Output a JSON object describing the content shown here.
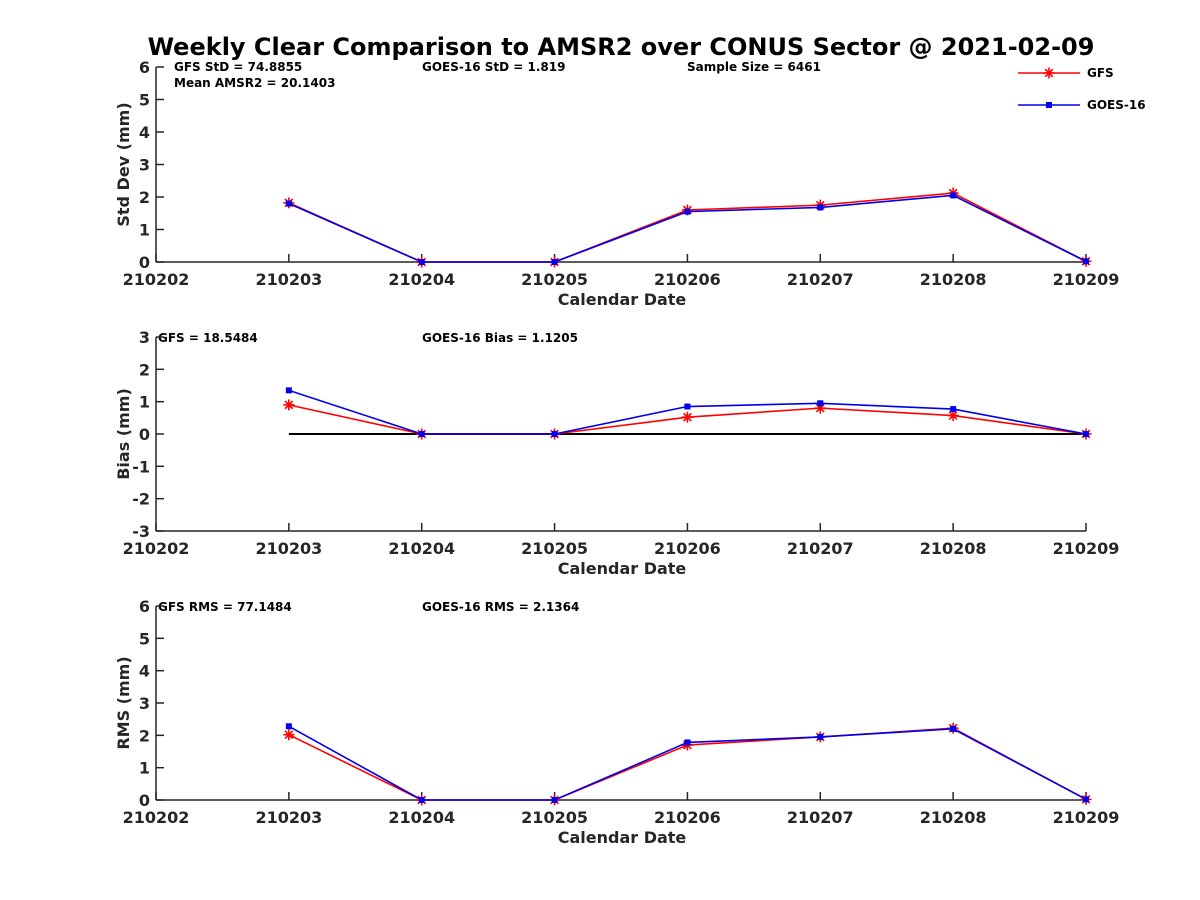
{
  "title": "Weekly Clear Comparison to AMSR2 over CONUS Sector @ 2021-02-09",
  "legend": [
    {
      "name": "GFS",
      "color": "#ff0000",
      "marker": "star"
    },
    {
      "name": "GOES-16",
      "color": "#0000ee",
      "marker": "square"
    }
  ],
  "panels": [
    {
      "stats": [
        {
          "text": "GFS StD = 74.8855"
        },
        {
          "text": "GOES-16 StD = 1.819"
        },
        {
          "text": "Sample Size = 6461"
        },
        {
          "text": "Mean AMSR2 = 20.1403"
        }
      ]
    },
    {
      "stats": [
        {
          "text": "GFS = 18.5484"
        },
        {
          "text": "GOES-16 Bias  = 1.1205"
        }
      ]
    },
    {
      "stats": [
        {
          "text": "GFS RMS = 77.1484"
        },
        {
          "text": "GOES-16 RMS = 2.1364"
        }
      ]
    }
  ],
  "chart_data": [
    {
      "type": "line",
      "title": "Weekly Clear Comparison to AMSR2 over CONUS Sector @ 2021-02-09",
      "xlabel": "Calendar Date",
      "ylabel": "Std Dev (mm)",
      "categories": [
        "210202",
        "210203",
        "210204",
        "210205",
        "210206",
        "210207",
        "210208",
        "210209"
      ],
      "ylim": [
        0,
        6
      ],
      "yticks": [
        0,
        1,
        2,
        3,
        4,
        5,
        6
      ],
      "zero_line": false,
      "series": [
        {
          "name": "GFS",
          "values": [
            null,
            1.82,
            0.0,
            0.0,
            1.6,
            1.75,
            2.12,
            0.02
          ]
        },
        {
          "name": "GOES-16",
          "values": [
            null,
            1.8,
            0.0,
            0.0,
            1.55,
            1.68,
            2.05,
            0.02
          ]
        }
      ]
    },
    {
      "type": "line",
      "xlabel": "Calendar Date",
      "ylabel": "Bias (mm)",
      "categories": [
        "210202",
        "210203",
        "210204",
        "210205",
        "210206",
        "210207",
        "210208",
        "210209"
      ],
      "ylim": [
        -3,
        3
      ],
      "yticks": [
        -3,
        -2,
        -1,
        0,
        1,
        2,
        3
      ],
      "zero_line": true,
      "series": [
        {
          "name": "GFS",
          "values": [
            null,
            0.9,
            0.0,
            0.0,
            0.52,
            0.8,
            0.57,
            0.0
          ]
        },
        {
          "name": "GOES-16",
          "values": [
            null,
            1.35,
            0.0,
            0.0,
            0.85,
            0.95,
            0.77,
            0.0
          ]
        }
      ]
    },
    {
      "type": "line",
      "xlabel": "Calendar Date",
      "ylabel": "RMS (mm)",
      "categories": [
        "210202",
        "210203",
        "210204",
        "210205",
        "210206",
        "210207",
        "210208",
        "210209"
      ],
      "ylim": [
        0,
        6
      ],
      "yticks": [
        0,
        1,
        2,
        3,
        4,
        5,
        6
      ],
      "zero_line": false,
      "series": [
        {
          "name": "GFS",
          "values": [
            null,
            2.02,
            0.0,
            0.0,
            1.7,
            1.95,
            2.22,
            0.02
          ]
        },
        {
          "name": "GOES-16",
          "values": [
            null,
            2.28,
            0.0,
            0.0,
            1.78,
            1.95,
            2.2,
            0.02
          ]
        }
      ]
    }
  ]
}
